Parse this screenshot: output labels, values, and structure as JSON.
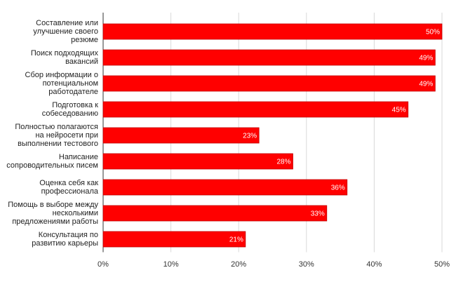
{
  "chart_data": {
    "type": "bar",
    "orientation": "horizontal",
    "categories": [
      "Составление или улучшение своего резюме",
      "Поиск подходящих вакансий",
      "Сбор информации о потенциальном работодателе",
      "Подготовка к собеседованию",
      "Полностью полагаются на нейросети при выполнении тестового",
      "Написание сопроводительных писем",
      "Оценка себя как профессионала",
      "Помощь в выборе между несколькими предложениями работы",
      "Консультация по развитию карьеры"
    ],
    "values": [
      50,
      49,
      49,
      45,
      23,
      28,
      36,
      33,
      21
    ],
    "value_labels": [
      "50%",
      "49%",
      "49%",
      "45%",
      "23%",
      "28%",
      "36%",
      "33%",
      "21%"
    ],
    "color": "#ff0000",
    "xlim": [
      0,
      50
    ],
    "xticks": [
      {
        "value": 0,
        "label": "0%"
      },
      {
        "value": 10,
        "label": "10%"
      },
      {
        "value": 20,
        "label": "20%"
      },
      {
        "value": 30,
        "label": "30%"
      },
      {
        "value": 40,
        "label": "40%"
      },
      {
        "value": 50,
        "label": "50%"
      }
    ],
    "grid": true
  }
}
